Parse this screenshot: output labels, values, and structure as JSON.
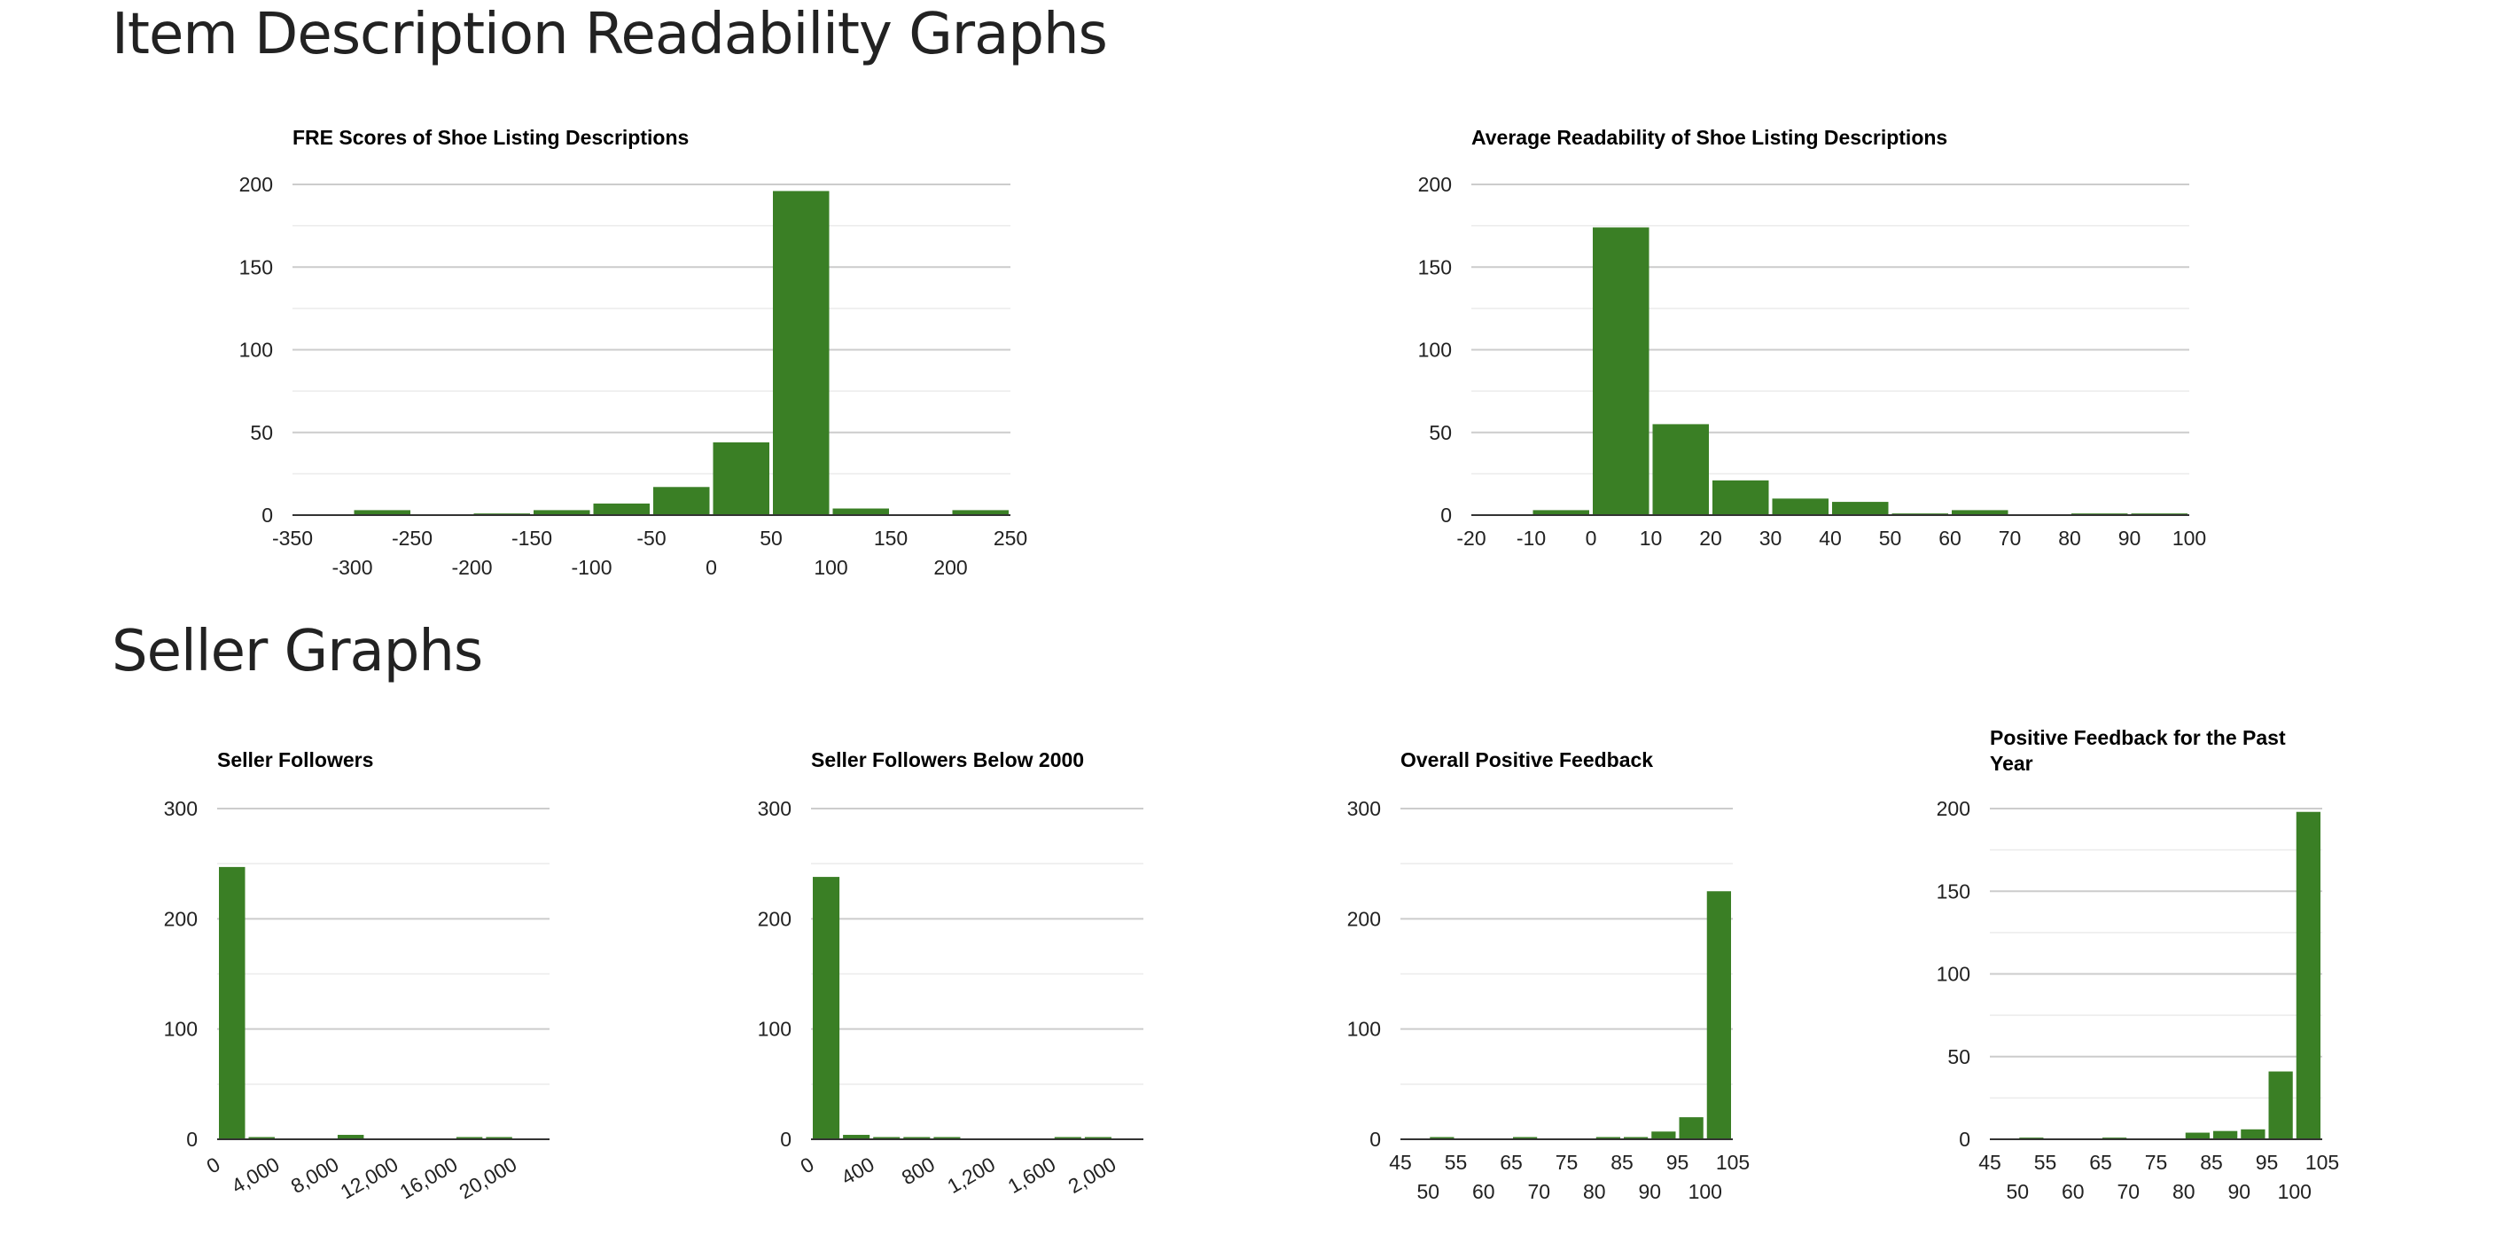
{
  "sections": {
    "readability": "Item Description Readability Graphs",
    "seller": "Seller Graphs"
  },
  "colors": {
    "bar": "#3a7f25"
  },
  "chart_data": [
    {
      "id": "fre",
      "type": "bar",
      "title": "FRE Scores of Shoe Listing Descriptions",
      "xlim": [
        -350,
        250
      ],
      "ylim": [
        0,
        200
      ],
      "yticks": [
        0,
        50,
        100,
        150,
        200
      ],
      "xticks": [
        -350,
        -300,
        -250,
        -200,
        -150,
        -100,
        -50,
        0,
        50,
        100,
        150,
        200,
        250
      ],
      "xtick_labels": [
        "-350",
        "-300",
        "-250",
        "-200",
        "-150",
        "-100",
        "-50",
        "0",
        "50",
        "100",
        "150",
        "200",
        "250"
      ],
      "bin_width": 50,
      "bins": [
        {
          "start": -300,
          "value": 3
        },
        {
          "start": -200,
          "value": 1
        },
        {
          "start": -150,
          "value": 3
        },
        {
          "start": -100,
          "value": 7
        },
        {
          "start": -50,
          "value": 17
        },
        {
          "start": 0,
          "value": 44
        },
        {
          "start": 50,
          "value": 196
        },
        {
          "start": 100,
          "value": 4
        },
        {
          "start": 200,
          "value": 3
        }
      ]
    },
    {
      "id": "avg",
      "type": "bar",
      "title": "Average Readability of Shoe Listing Descriptions",
      "xlim": [
        -20,
        100
      ],
      "ylim": [
        0,
        200
      ],
      "yticks": [
        0,
        50,
        100,
        150,
        200
      ],
      "xticks": [
        -20,
        -10,
        0,
        10,
        20,
        30,
        40,
        50,
        60,
        70,
        80,
        90,
        100
      ],
      "xtick_labels": [
        "-20",
        "-10",
        "0",
        "10",
        "20",
        "30",
        "40",
        "50",
        "60",
        "70",
        "80",
        "90",
        "100"
      ],
      "bin_width": 10,
      "bins": [
        {
          "start": -10,
          "value": 3
        },
        {
          "start": 0,
          "value": 174
        },
        {
          "start": 10,
          "value": 55
        },
        {
          "start": 20,
          "value": 21
        },
        {
          "start": 30,
          "value": 10
        },
        {
          "start": 40,
          "value": 8
        },
        {
          "start": 50,
          "value": 1
        },
        {
          "start": 60,
          "value": 3
        },
        {
          "start": 80,
          "value": 1
        },
        {
          "start": 90,
          "value": 1
        }
      ]
    },
    {
      "id": "followers",
      "type": "bar",
      "title": "Seller Followers",
      "xlim": [
        0,
        22400
      ],
      "ylim": [
        0,
        300
      ],
      "yticks": [
        0,
        100,
        200,
        300
      ],
      "xticks": [
        0,
        4000,
        8000,
        12000,
        16000,
        20000
      ],
      "xtick_labels": [
        "0",
        "4,000",
        "8,000",
        "12,000",
        "16,000",
        "20,000"
      ],
      "bin_width": 2000,
      "bins": [
        {
          "start": 0,
          "value": 247
        },
        {
          "start": 2000,
          "value": 2
        },
        {
          "start": 8000,
          "value": 4
        },
        {
          "start": 16000,
          "value": 2
        },
        {
          "start": 18000,
          "value": 2
        }
      ]
    },
    {
      "id": "followers2000",
      "type": "bar",
      "title": "Seller Followers Below 2000",
      "xlim": [
        0,
        2200
      ],
      "ylim": [
        0,
        300
      ],
      "yticks": [
        0,
        100,
        200,
        300
      ],
      "xticks": [
        0,
        400,
        800,
        1200,
        1600,
        2000
      ],
      "xtick_labels": [
        "0",
        "400",
        "800",
        "1,200",
        "1,600",
        "2,000"
      ],
      "bin_width": 200,
      "bins": [
        {
          "start": 0,
          "value": 238
        },
        {
          "start": 200,
          "value": 4
        },
        {
          "start": 400,
          "value": 2
        },
        {
          "start": 600,
          "value": 2
        },
        {
          "start": 800,
          "value": 2
        },
        {
          "start": 1600,
          "value": 2
        },
        {
          "start": 1800,
          "value": 2
        }
      ]
    },
    {
      "id": "overall",
      "type": "bar",
      "title": "Overall Positive Feedback",
      "xlim": [
        45,
        105
      ],
      "ylim": [
        0,
        300
      ],
      "yticks": [
        0,
        100,
        200,
        300
      ],
      "xticks": [
        45,
        50,
        55,
        60,
        65,
        70,
        75,
        80,
        85,
        90,
        95,
        100,
        105
      ],
      "xtick_labels": [
        "45",
        "50",
        "55",
        "60",
        "65",
        "70",
        "75",
        "80",
        "85",
        "90",
        "95",
        "100",
        "105"
      ],
      "bin_width": 5,
      "bins": [
        {
          "start": 50,
          "value": 2
        },
        {
          "start": 65,
          "value": 2
        },
        {
          "start": 80,
          "value": 2
        },
        {
          "start": 85,
          "value": 2
        },
        {
          "start": 90,
          "value": 7
        },
        {
          "start": 95,
          "value": 20
        },
        {
          "start": 100,
          "value": 225
        }
      ]
    },
    {
      "id": "pastyear",
      "type": "bar",
      "title_lines": [
        "Positive Feedback for the Past",
        "Year"
      ],
      "xlim": [
        45,
        105
      ],
      "ylim": [
        0,
        200
      ],
      "yticks": [
        0,
        50,
        100,
        150,
        200
      ],
      "xticks": [
        45,
        50,
        55,
        60,
        65,
        70,
        75,
        80,
        85,
        90,
        95,
        100,
        105
      ],
      "xtick_labels": [
        "45",
        "50",
        "55",
        "60",
        "65",
        "70",
        "75",
        "80",
        "85",
        "90",
        "95",
        "100",
        "105"
      ],
      "bin_width": 5,
      "bins": [
        {
          "start": 50,
          "value": 1
        },
        {
          "start": 65,
          "value": 1
        },
        {
          "start": 80,
          "value": 4
        },
        {
          "start": 85,
          "value": 5
        },
        {
          "start": 90,
          "value": 6
        },
        {
          "start": 95,
          "value": 41
        },
        {
          "start": 100,
          "value": 198
        }
      ]
    }
  ]
}
